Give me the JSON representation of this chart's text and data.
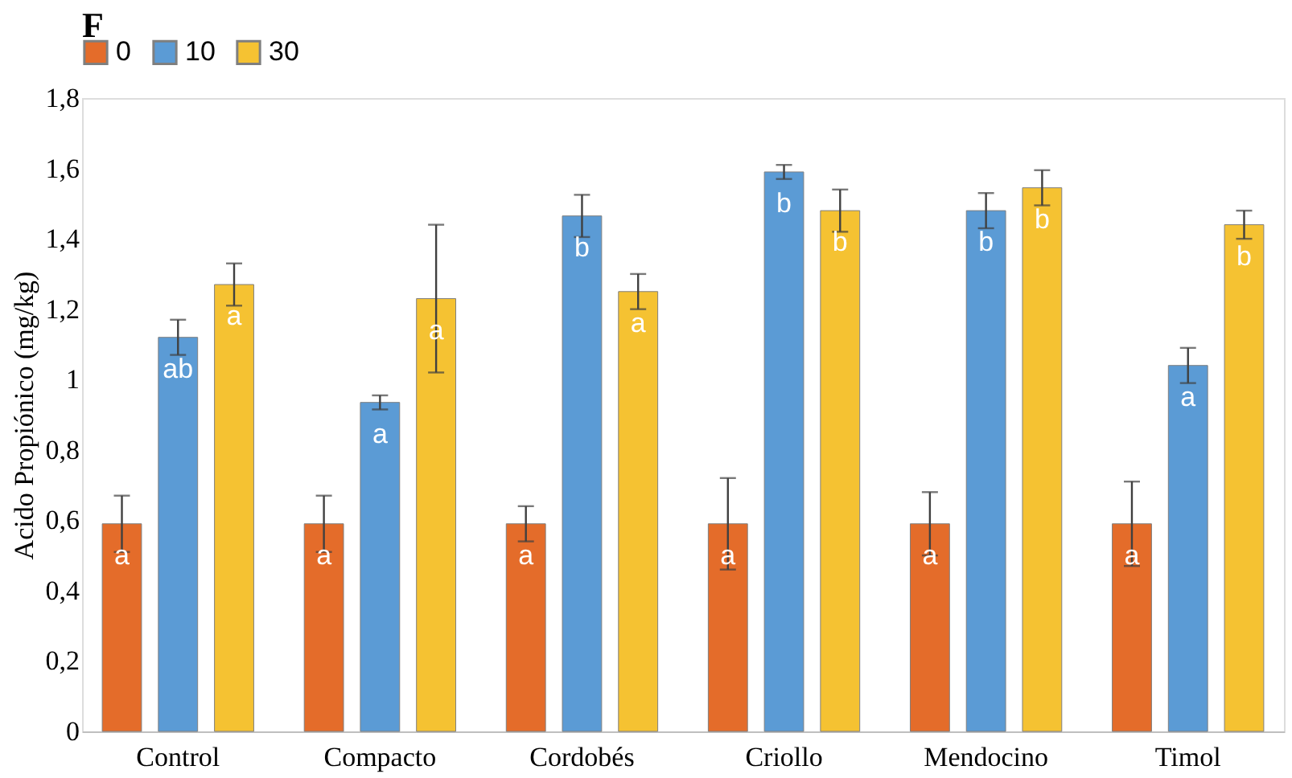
{
  "chart_data": {
    "type": "bar",
    "title": "F",
    "ylabel": "Acido Propiónico (mg/kg)",
    "categories": [
      "Control",
      "Compacto",
      "Cordobés",
      "Criollo",
      "Mendocino",
      "Timol"
    ],
    "series": [
      {
        "name": "0",
        "color": "#e46c2a",
        "values": [
          0.59,
          0.59,
          0.59,
          0.59,
          0.59,
          0.59
        ],
        "errors": [
          0.08,
          0.08,
          0.05,
          0.13,
          0.09,
          0.12
        ],
        "value_labels": [
          "a",
          "a",
          "a",
          "a",
          "a",
          "a"
        ]
      },
      {
        "name": "10",
        "color": "#5b9bd5",
        "values": [
          1.12,
          0.935,
          1.465,
          1.59,
          1.48,
          1.04
        ],
        "errors": [
          0.05,
          0.02,
          0.06,
          0.02,
          0.05,
          0.05
        ],
        "value_labels": [
          "ab",
          "a",
          "b",
          "b",
          "b",
          "a"
        ]
      },
      {
        "name": "30",
        "color": "#f5c232",
        "values": [
          1.27,
          1.23,
          1.25,
          1.48,
          1.545,
          1.44
        ],
        "errors": [
          0.06,
          0.21,
          0.05,
          0.06,
          0.05,
          0.04
        ],
        "value_labels": [
          "a",
          "a",
          "a",
          "b",
          "b",
          "b"
        ]
      }
    ],
    "ylim": [
      0,
      1.8
    ],
    "yticks": [
      0,
      {
        "value": 0.2,
        "label": "0,2"
      },
      {
        "value": 0.4,
        "label": "0,4"
      },
      {
        "value": 0.6,
        "label": "0,6"
      },
      {
        "value": 0.8,
        "label": "0,8"
      },
      1,
      {
        "value": 1.2,
        "label": "1,2"
      },
      {
        "value": 1.4,
        "label": "1,4"
      },
      {
        "value": 1.6,
        "label": "1,6"
      },
      {
        "value": 1.8,
        "label": "1,8"
      }
    ],
    "grid": false,
    "legend": "top"
  }
}
